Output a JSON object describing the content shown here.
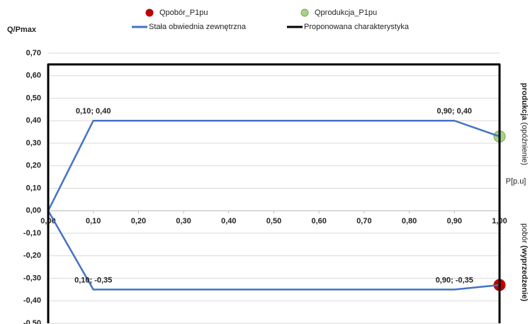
{
  "chart_data": {
    "type": "line",
    "y_label": "Q/Pmax",
    "x_label": "P[p.u]",
    "upper_side_label": [
      "produkcja",
      "(opóźnienie)"
    ],
    "lower_side_label": [
      "pobór",
      "(wyprzedzenie)"
    ],
    "legend": "top",
    "grid": true,
    "xlim": [
      0,
      1
    ],
    "ylim": [
      -0.5,
      0.7
    ],
    "xticks": [
      {
        "value": 0,
        "label": "0,00"
      },
      {
        "value": 0.1,
        "label": "0,10"
      },
      {
        "value": 0.2,
        "label": "0,20"
      },
      {
        "value": 0.3,
        "label": "0,30"
      },
      {
        "value": 0.4,
        "label": "0,40"
      },
      {
        "value": 0.5,
        "label": "0,50"
      },
      {
        "value": 0.6,
        "label": "0,60"
      },
      {
        "value": 0.7,
        "label": "0,70"
      },
      {
        "value": 0.8,
        "label": "0,80"
      },
      {
        "value": 0.9,
        "label": "0,90"
      },
      {
        "value": 1,
        "label": "1,00"
      }
    ],
    "yticks": [
      {
        "value": 0.7,
        "label": "0,70"
      },
      {
        "value": 0.6,
        "label": "0,60"
      },
      {
        "value": 0.5,
        "label": "0,50"
      },
      {
        "value": 0.4,
        "label": "0,40"
      },
      {
        "value": 0.3,
        "label": "0,30"
      },
      {
        "value": 0.2,
        "label": "0,20"
      },
      {
        "value": 0.1,
        "label": "0,10"
      },
      {
        "value": 0,
        "label": "0,00"
      },
      {
        "value": -0.1,
        "label": "-0,10"
      },
      {
        "value": -0.2,
        "label": "-0,20"
      },
      {
        "value": -0.3,
        "label": "-0,30"
      },
      {
        "value": -0.4,
        "label": "-0,40"
      },
      {
        "value": -0.5,
        "label": "-0,50"
      }
    ],
    "series": [
      {
        "name": "Qpobór_P1pu",
        "color": "#c00000",
        "style": "marker",
        "x": [
          1
        ],
        "values": [
          -0.33
        ]
      },
      {
        "name": "Qprodukcja_P1pu",
        "color": "#a9d18e",
        "style": "marker",
        "x": [
          1
        ],
        "values": [
          0.33
        ]
      },
      {
        "name": "Stała obwiednia zewnętrzna",
        "color": "#4472c4",
        "style": "line",
        "x": [
          0,
          0.1,
          0.9,
          1,
          null,
          0,
          0.1,
          0.9,
          1
        ],
        "values": [
          0,
          0.4,
          0.4,
          0.33,
          null,
          0,
          -0.35,
          -0.35,
          -0.33
        ],
        "value_labels": [
          null,
          "0,10; 0,40",
          "0,90; 0,40",
          null,
          null,
          null,
          "0,10; -0,35",
          "0,90; -0,35",
          null
        ]
      },
      {
        "name": "Proponowana charakterystyka",
        "color": "#000000",
        "style": "line",
        "x": [
          0,
          0,
          1,
          1
        ],
        "values": [
          -0.5,
          0.65,
          0.65,
          -0.5
        ]
      }
    ]
  }
}
